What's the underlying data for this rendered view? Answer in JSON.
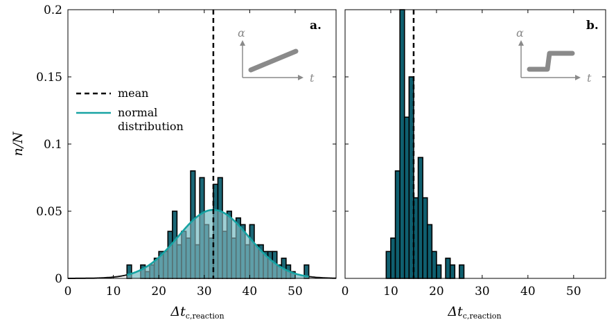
{
  "colors": {
    "bar_fill": "#0f5f6f",
    "bar_edge": "#000000",
    "normal_curve": "#17a3a3",
    "normal_fill": "#9bcdd3",
    "mean_line": "#000000",
    "inset_gray": "#8a8a8a"
  },
  "chart_data": [
    {
      "type": "bar",
      "panel_label": "a.",
      "ylabel": "n/N",
      "xlabel_main": "Δt",
      "xlabel_sub": "c,reaction",
      "xlim": [
        0,
        59
      ],
      "ylim": [
        0,
        0.2
      ],
      "xticks": [
        "0",
        "10",
        "20",
        "30",
        "40",
        "50"
      ],
      "yticks": [
        "0",
        "0.05",
        "0.1",
        "0.15",
        "0.2"
      ],
      "bin_width": 1,
      "bin_starts": [
        13,
        16,
        17,
        18,
        19,
        20,
        21,
        22,
        23,
        24,
        25,
        26,
        27,
        28,
        29,
        30,
        31,
        32,
        33,
        34,
        35,
        36,
        37,
        38,
        39,
        40,
        41,
        42,
        43,
        44,
        45,
        46,
        47,
        48,
        49,
        52
      ],
      "values": [
        0.01,
        0.01,
        0.005,
        0.01,
        0.015,
        0.02,
        0.02,
        0.035,
        0.05,
        0.025,
        0.035,
        0.03,
        0.08,
        0.025,
        0.075,
        0.04,
        0.03,
        0.07,
        0.075,
        0.035,
        0.05,
        0.03,
        0.045,
        0.04,
        0.025,
        0.04,
        0.025,
        0.025,
        0.02,
        0.02,
        0.02,
        0.01,
        0.015,
        0.01,
        0.005,
        0.01
      ],
      "mean": 32,
      "normal": {
        "mean": 32,
        "std": 7.8,
        "peak": 0.051
      },
      "legend": [
        {
          "label": "mean",
          "style": "dashed"
        },
        {
          "label": "normal distribution",
          "style": "solid"
        }
      ],
      "legend_lines": [
        "normal",
        "distribution"
      ],
      "inset": {
        "y_label": "α",
        "x_label": "t",
        "shape": "ramp"
      }
    },
    {
      "type": "bar",
      "panel_label": "b.",
      "xlabel_main": "Δt",
      "xlabel_sub": "c,reaction",
      "xlim": [
        0,
        57
      ],
      "ylim": [
        0,
        0.2
      ],
      "xticks": [
        "0",
        "10",
        "20",
        "30",
        "40",
        "50"
      ],
      "bin_width": 1,
      "bin_starts": [
        9,
        10,
        11,
        12,
        13,
        14,
        15,
        16,
        17,
        18,
        19,
        20,
        22,
        23,
        25
      ],
      "values": [
        0.02,
        0.03,
        0.08,
        0.2,
        0.12,
        0.15,
        0.06,
        0.09,
        0.06,
        0.04,
        0.02,
        0.01,
        0.015,
        0.01,
        0.01
      ],
      "mean": 15,
      "inset": {
        "y_label": "α",
        "x_label": "t",
        "shape": "step"
      }
    }
  ]
}
